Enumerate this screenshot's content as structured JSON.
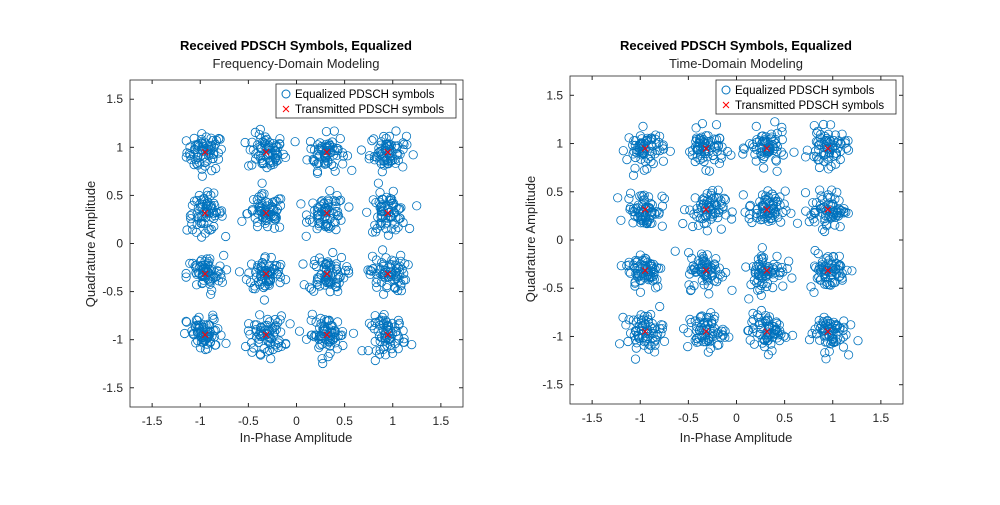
{
  "colors": {
    "equalized": "#0072BD",
    "transmitted": "#FF0000",
    "axes": "#262626"
  },
  "chart_data": [
    {
      "type": "scatter",
      "title": "Received PDSCH Symbols, Equalized",
      "subtitle": "Frequency-Domain Modeling",
      "xlabel": "In-Phase Amplitude",
      "ylabel": "Quadrature Amplitude",
      "xlim": [
        -1.73,
        1.73
      ],
      "ylim": [
        -1.7,
        1.7
      ],
      "xticks": [
        "-1.5",
        "-1",
        "-0.5",
        "0",
        "0.5",
        "1",
        "1.5"
      ],
      "yticks": [
        "1.5",
        "1",
        "0.5",
        "0",
        "-0.5",
        "-1",
        "-1.5"
      ],
      "legend_position": "top-right",
      "grid": false,
      "series": [
        {
          "name": "Equalized PDSCH symbols",
          "marker": "circle",
          "description_clusters_at": "16QAM constellation points"
        },
        {
          "name": "Transmitted PDSCH symbols",
          "marker": "x",
          "points": [
            [
              -0.949,
              0.949
            ],
            [
              -0.316,
              0.949
            ],
            [
              0.316,
              0.949
            ],
            [
              0.949,
              0.949
            ],
            [
              -0.949,
              0.316
            ],
            [
              -0.316,
              0.316
            ],
            [
              0.316,
              0.316
            ],
            [
              0.949,
              0.316
            ],
            [
              -0.949,
              -0.316
            ],
            [
              -0.316,
              -0.316
            ],
            [
              0.316,
              -0.316
            ],
            [
              0.949,
              -0.316
            ],
            [
              -0.949,
              -0.949
            ],
            [
              -0.316,
              -0.949
            ],
            [
              0.316,
              -0.949
            ],
            [
              0.949,
              -0.949
            ]
          ]
        }
      ]
    },
    {
      "type": "scatter",
      "title": "Received PDSCH Symbols, Equalized",
      "subtitle": "Time-Domain Modeling",
      "xlabel": "In-Phase Amplitude",
      "ylabel": "Quadrature Amplitude",
      "xlim": [
        -1.73,
        1.73
      ],
      "ylim": [
        -1.7,
        1.7
      ],
      "xticks": [
        "-1.5",
        "-1",
        "-0.5",
        "0",
        "0.5",
        "1",
        "1.5"
      ],
      "yticks": [
        "1.5",
        "1",
        "0.5",
        "0",
        "-0.5",
        "-1",
        "-1.5"
      ],
      "legend_position": "top-right",
      "grid": false,
      "series": [
        {
          "name": "Equalized PDSCH symbols",
          "marker": "circle",
          "description_clusters_at": "16QAM constellation points"
        },
        {
          "name": "Transmitted PDSCH symbols",
          "marker": "x",
          "points": [
            [
              -0.949,
              0.949
            ],
            [
              -0.316,
              0.949
            ],
            [
              0.316,
              0.949
            ],
            [
              0.949,
              0.949
            ],
            [
              -0.949,
              0.316
            ],
            [
              -0.316,
              0.316
            ],
            [
              0.316,
              0.316
            ],
            [
              0.949,
              0.316
            ],
            [
              -0.949,
              -0.316
            ],
            [
              -0.316,
              -0.316
            ],
            [
              0.316,
              -0.316
            ],
            [
              0.949,
              -0.316
            ],
            [
              -0.949,
              -0.949
            ],
            [
              -0.316,
              -0.949
            ],
            [
              0.316,
              -0.949
            ],
            [
              0.949,
              -0.949
            ]
          ]
        }
      ]
    }
  ]
}
